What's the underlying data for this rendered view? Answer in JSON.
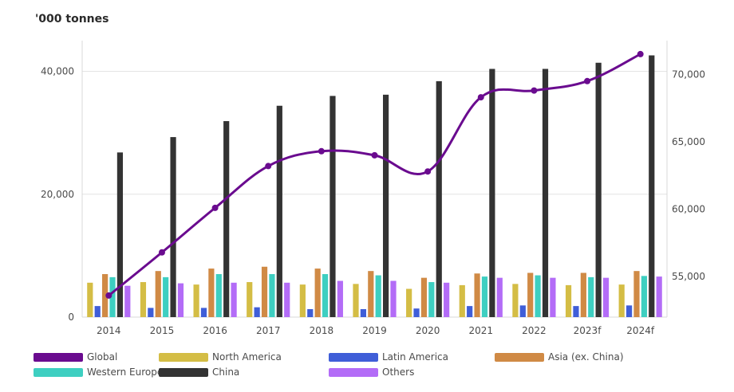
{
  "chart_data": {
    "type": "bar",
    "unit_label": "'000 tonnes",
    "categories": [
      "2014",
      "2015",
      "2016",
      "2017",
      "2018",
      "2019",
      "2020",
      "2021",
      "2022",
      "2023f",
      "2024f"
    ],
    "ylim_left": [
      0,
      45000
    ],
    "yticks_left": [
      0,
      20000,
      40000
    ],
    "ytick_labels_left": [
      "0",
      "20,000",
      "40,000"
    ],
    "ylim_right": [
      52000,
      72500
    ],
    "yticks_right": [
      55000,
      60000,
      65000,
      70000
    ],
    "ytick_labels_right": [
      "55,000",
      "60,000",
      "65,000",
      "70,000"
    ],
    "grid": "horizontal",
    "legend_position": "bottom",
    "bar_series": [
      {
        "name": "North America",
        "color": "#d4bd45",
        "values": [
          5600,
          5700,
          5300,
          5700,
          5300,
          5400,
          4600,
          5200,
          5400,
          5200,
          5300
        ]
      },
      {
        "name": "Latin America",
        "color": "#3f5ed8",
        "values": [
          1800,
          1500,
          1500,
          1600,
          1300,
          1300,
          1400,
          1800,
          1900,
          1800,
          1900
        ]
      },
      {
        "name": "Asia (ex. China)",
        "color": "#d08a45",
        "values": [
          7000,
          7500,
          7900,
          8200,
          7900,
          7500,
          6400,
          7100,
          7200,
          7200,
          7500
        ]
      },
      {
        "name": "Western Europe",
        "color": "#3ecfc1",
        "values": [
          6500,
          6500,
          7000,
          7000,
          7000,
          6800,
          5700,
          6600,
          6800,
          6500,
          6700
        ]
      },
      {
        "name": "China",
        "color": "#333333",
        "values": [
          26800,
          29300,
          31900,
          34400,
          36000,
          36200,
          38400,
          40400,
          40400,
          41400,
          42600
        ]
      },
      {
        "name": "Others",
        "color": "#b36cf7",
        "values": [
          5100,
          5500,
          5600,
          5600,
          5900,
          5900,
          5600,
          6400,
          6400,
          6400,
          6600
        ]
      }
    ],
    "line_series": {
      "name": "Global",
      "axis": "right",
      "color": "#6a0b8f",
      "values": [
        53600,
        56800,
        60100,
        63200,
        64300,
        64000,
        62800,
        68300,
        68800,
        69500,
        71500
      ]
    },
    "legend": [
      {
        "name": "Global",
        "color": "#6a0b8f"
      },
      {
        "name": "North America",
        "color": "#d4bd45"
      },
      {
        "name": "Latin America",
        "color": "#3f5ed8"
      },
      {
        "name": "Asia (ex. China)",
        "color": "#d08a45"
      },
      {
        "name": "Western Europe",
        "color": "#3ecfc1"
      },
      {
        "name": "China",
        "color": "#333333"
      },
      {
        "name": "Others",
        "color": "#b36cf7"
      }
    ]
  }
}
